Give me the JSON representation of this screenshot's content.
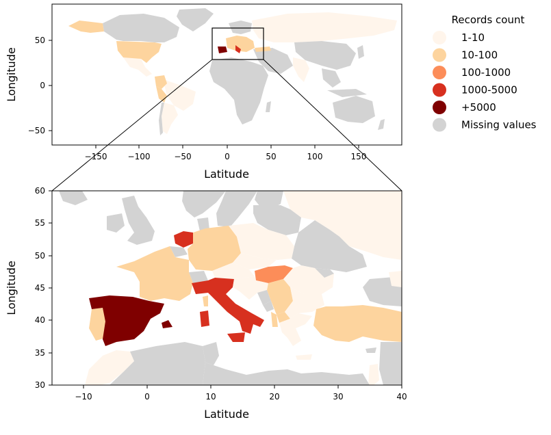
{
  "legend": {
    "title": "Records count",
    "items": [
      {
        "label": "1-10",
        "color": "#fff5eb"
      },
      {
        "label": "10-100",
        "color": "#fdd49e"
      },
      {
        "label": "100-1000",
        "color": "#fc8d59"
      },
      {
        "label": "1000-5000",
        "color": "#d7301f"
      },
      {
        "label": "+5000",
        "color": "#7f0000"
      },
      {
        "label": "Missing values",
        "color": "#d3d3d3"
      }
    ]
  },
  "world_map": {
    "xlabel": "Latitude",
    "ylabel": "Longitude",
    "xticks": [
      "−150",
      "−100",
      "−50",
      "0",
      "50",
      "100",
      "150"
    ],
    "yticks": [
      "50",
      "0",
      "−50"
    ]
  },
  "europe_map": {
    "xlabel": "Latitude",
    "ylabel": "Longitude",
    "xticks": [
      "−10",
      "0",
      "10",
      "20",
      "30",
      "40"
    ],
    "yticks": [
      "60",
      "55",
      "50",
      "45",
      "40",
      "35",
      "30"
    ]
  }
}
